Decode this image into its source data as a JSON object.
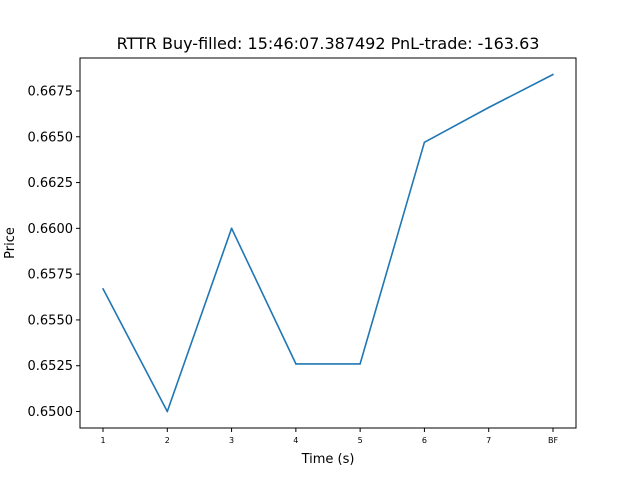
{
  "chart_data": {
    "type": "line",
    "title": "RTTR  Buy-filled:  15:46:07.387492  PnL-trade:  -163.63",
    "xlabel": "Time (s)",
    "ylabel": "Price",
    "categories": [
      "1",
      "2",
      "3",
      "4",
      "5",
      "6",
      "7",
      "BF"
    ],
    "series": [
      {
        "values": [
          0.6567,
          0.65,
          0.66,
          0.6526,
          0.6526,
          0.6647,
          0.6666,
          0.6684
        ]
      }
    ],
    "ylim": [
      0.6491,
      0.6693
    ],
    "yticks": [
      "0.6500",
      "0.6525",
      "0.6550",
      "0.6575",
      "0.6600",
      "0.6625",
      "0.6650",
      "0.6675"
    ],
    "grid": false,
    "line_color": "#1f77b4"
  }
}
